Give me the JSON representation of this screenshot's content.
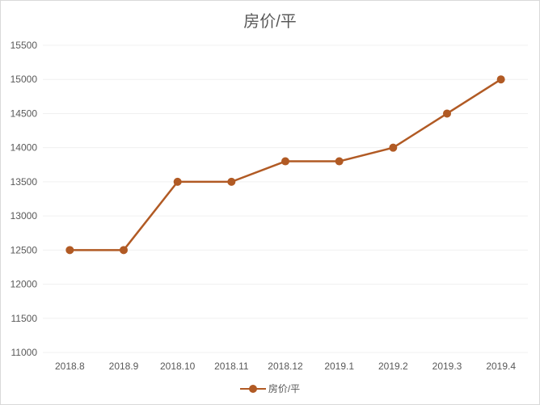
{
  "chart_data": {
    "type": "line",
    "title": "房价/平",
    "categories": [
      "2018.8",
      "2018.9",
      "2018.10",
      "2018.11",
      "2018.12",
      "2019.1",
      "2019.2",
      "2019.3",
      "2019.4"
    ],
    "series": [
      {
        "name": "房价/平",
        "values": [
          12500,
          12500,
          13500,
          13500,
          13800,
          13800,
          14000,
          14500,
          15000
        ],
        "color": "#b15a24"
      }
    ],
    "y_ticks": [
      11000,
      11500,
      12000,
      12500,
      13000,
      13500,
      14000,
      14500,
      15000,
      15500
    ],
    "ylim": [
      11000,
      15500
    ],
    "grid": true,
    "legend_position": "bottom",
    "gridline_color": "#f0f0f0"
  }
}
